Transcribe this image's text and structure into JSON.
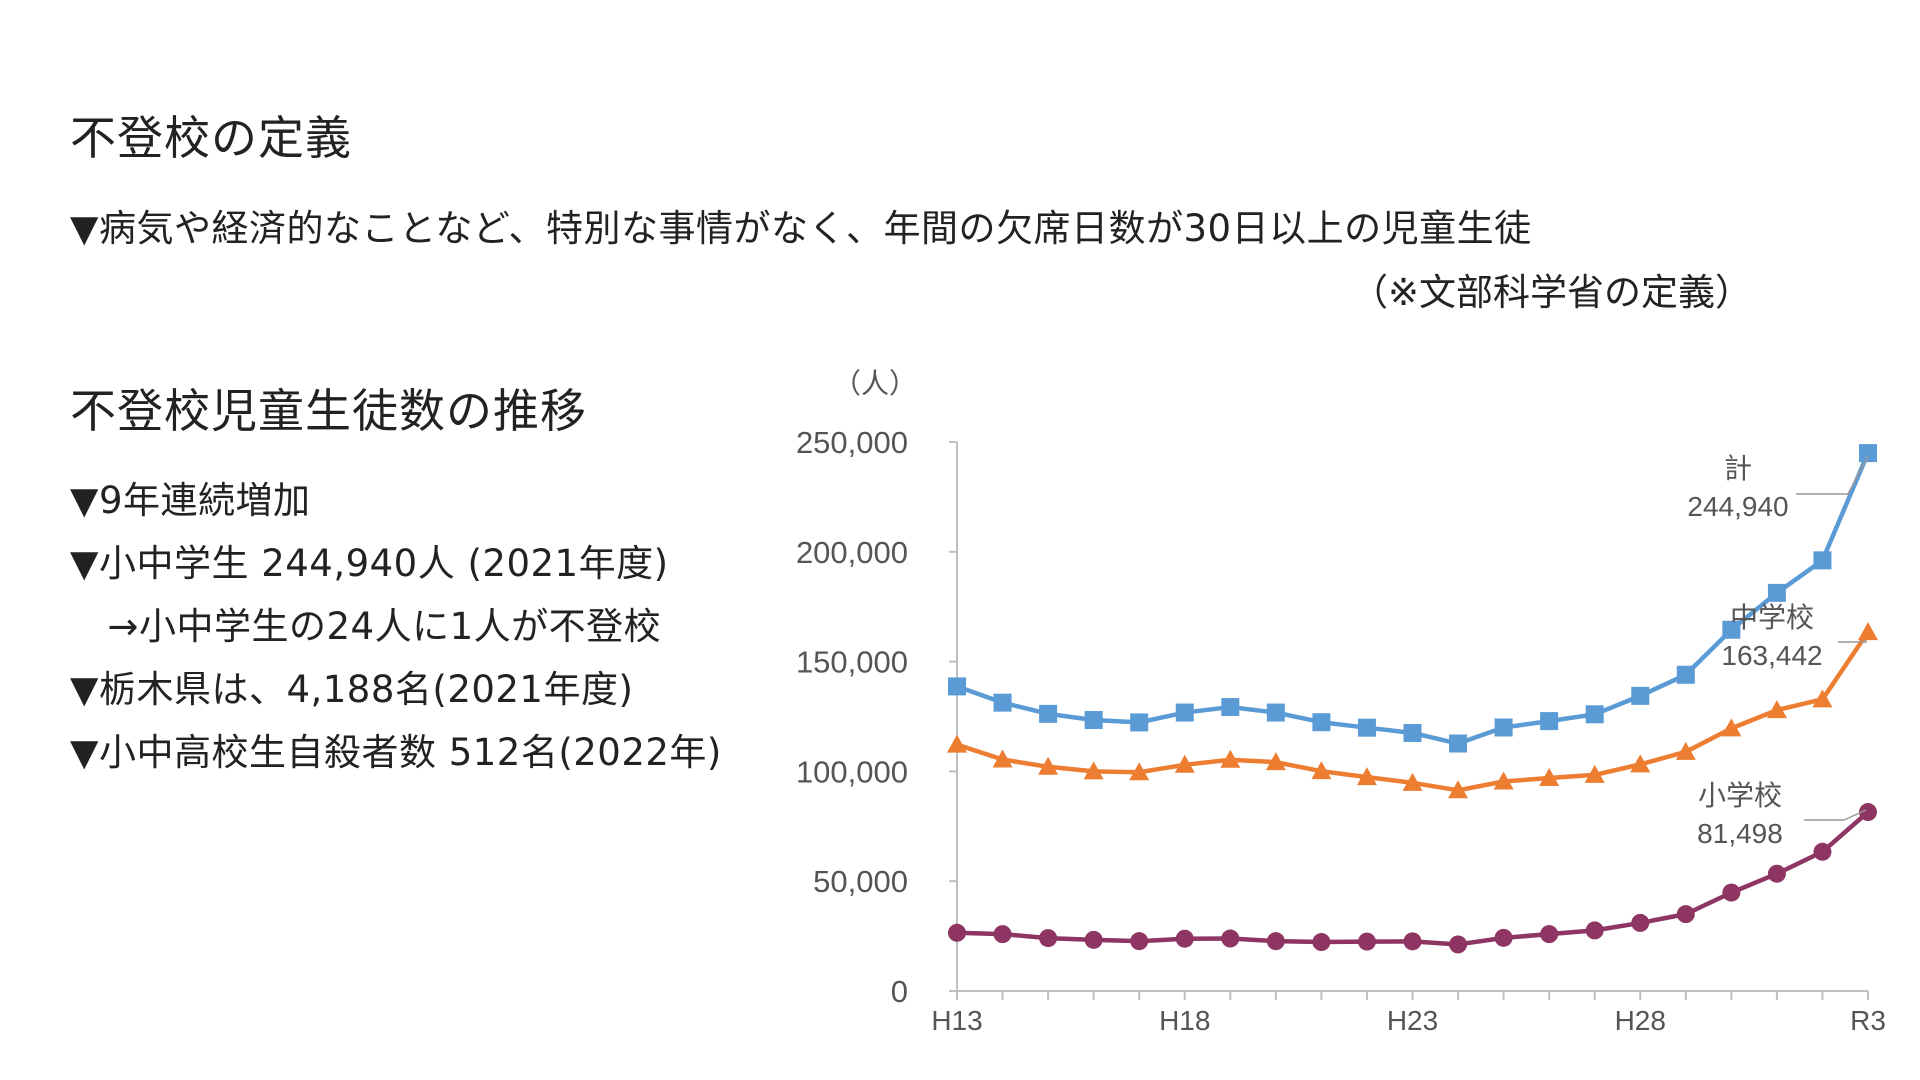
{
  "definition": {
    "title": "不登校の定義",
    "text": "▼病気や経済的なことなど、特別な事情がなく、年間の欠席日数が30日以上の児童生徒",
    "note": "（※文部科学省の定義）"
  },
  "trend": {
    "title": "不登校児童生徒数の推移",
    "bullets": [
      "▼9年連続増加",
      "▼小中学生 244,940人 (2021年度)",
      "　→小中学生の24人に1人が不登校",
      "▼栃木県は、4,188名(2021年度)",
      "▼小中高校生自殺者数 512名(2022年)"
    ]
  },
  "chart_data": {
    "type": "line",
    "unit_label": "（人）",
    "ylim": [
      0,
      250000
    ],
    "yticks": [
      "0",
      "50,000",
      "100,000",
      "150,000",
      "200,000",
      "250,000"
    ],
    "ytick_values": [
      0,
      50000,
      100000,
      150000,
      200000,
      250000
    ],
    "x": [
      "H13",
      "H14",
      "H15",
      "H16",
      "H17",
      "H18",
      "H19",
      "H20",
      "H21",
      "H22",
      "H23",
      "H24",
      "H25",
      "H26",
      "H27",
      "H28",
      "H29",
      "H30",
      "R1",
      "R2",
      "R3"
    ],
    "xtick_labels": [
      "H13",
      "H18",
      "H23",
      "H28",
      "R3"
    ],
    "series": [
      {
        "name": "計",
        "label": "計",
        "value_label": "244,940",
        "color": "#5b9bd5",
        "marker": "square",
        "values": [
          138700,
          131300,
          126200,
          123400,
          122300,
          126800,
          129300,
          126800,
          122400,
          119900,
          117500,
          112700,
          120000,
          122900,
          126000,
          134400,
          144000,
          164500,
          181300,
          196100,
          244940
        ]
      },
      {
        "name": "中学校",
        "label": "中学校",
        "value_label": "163,442",
        "color": "#ed7d31",
        "marker": "triangle",
        "values": [
          112200,
          105400,
          102100,
          100000,
          99600,
          103000,
          105300,
          104200,
          100100,
          97400,
          94800,
          91400,
          95400,
          97000,
          98400,
          103200,
          108900,
          119600,
          127900,
          132800,
          163442
        ]
      },
      {
        "name": "小学校",
        "label": "小学校",
        "value_label": "81,498",
        "color": "#8e3563",
        "marker": "circle",
        "values": [
          26500,
          25900,
          24100,
          23300,
          22700,
          23800,
          23900,
          22700,
          22300,
          22500,
          22600,
          21200,
          24200,
          25900,
          27600,
          31000,
          35000,
          44800,
          53400,
          63400,
          81498
        ]
      }
    ]
  }
}
